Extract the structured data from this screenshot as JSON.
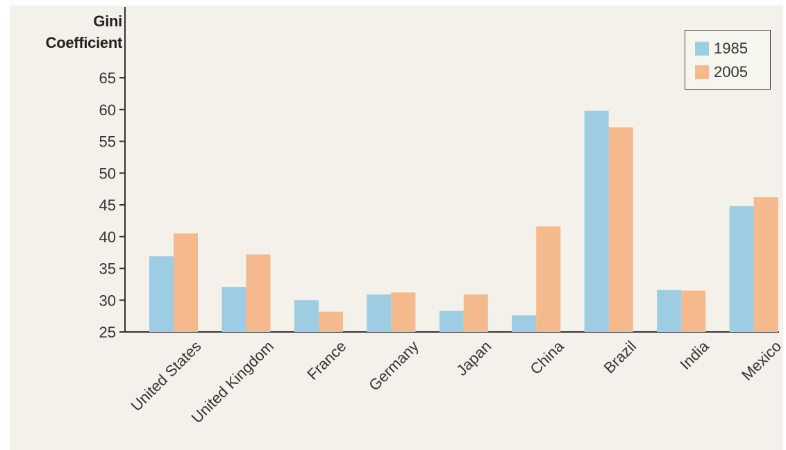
{
  "chart_data": {
    "type": "bar",
    "ylabel_line1": "Gini",
    "ylabel_line2": "Coefficient",
    "xlabel": "",
    "categories": [
      "United States",
      "United Kingdom",
      "France",
      "Germany",
      "Japan",
      "China",
      "Brazil",
      "India",
      "Mexico"
    ],
    "series": [
      {
        "name": "1985",
        "color": "#9ccde3",
        "values": [
          36.9,
          32.1,
          30.0,
          30.9,
          28.3,
          27.6,
          59.8,
          31.6,
          44.8
        ]
      },
      {
        "name": "2005",
        "color": "#f4b98c",
        "values": [
          40.5,
          37.2,
          28.2,
          31.2,
          30.9,
          41.6,
          57.2,
          31.5,
          46.2
        ]
      }
    ],
    "ylim": [
      25,
      65
    ],
    "yticks": [
      25,
      30,
      35,
      40,
      45,
      50,
      55,
      60,
      65
    ],
    "legend_position": "top-right",
    "grid": false
  }
}
